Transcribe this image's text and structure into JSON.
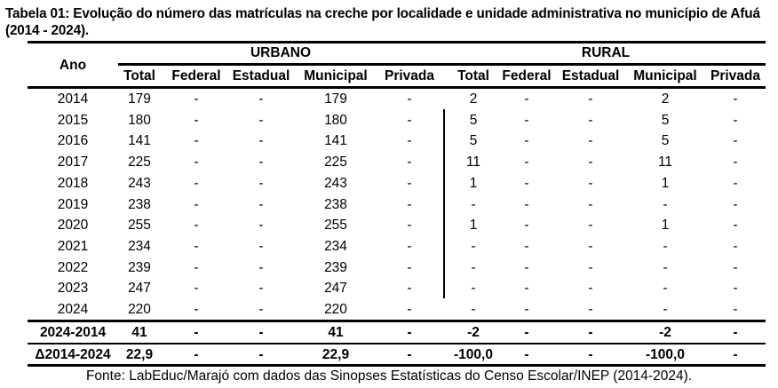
{
  "title": "Tabela 01: Evolução do número das matrículas na creche por localidade e unidade administrativa no município de Afuá (2014 - 2024).",
  "table": {
    "row_header": "Ano",
    "groups": [
      "URBANO",
      "RURAL"
    ],
    "columns": [
      "Total",
      "Federal",
      "Estadual",
      "Municipal",
      "Privada",
      "Total",
      "Federal",
      "Estadual",
      "Municipal",
      "Privada"
    ],
    "rows": [
      {
        "ano": "2014",
        "values": [
          "179",
          "-",
          "-",
          "179",
          "-",
          "2",
          "-",
          "-",
          "2",
          "-"
        ]
      },
      {
        "ano": "2015",
        "values": [
          "180",
          "-",
          "-",
          "180",
          "-",
          "5",
          "-",
          "-",
          "5",
          "-"
        ]
      },
      {
        "ano": "2016",
        "values": [
          "141",
          "-",
          "-",
          "141",
          "-",
          "5",
          "-",
          "-",
          "5",
          "-"
        ]
      },
      {
        "ano": "2017",
        "values": [
          "225",
          "-",
          "-",
          "225",
          "-",
          "11",
          "-",
          "-",
          "11",
          "-"
        ]
      },
      {
        "ano": "2018",
        "values": [
          "243",
          "-",
          "-",
          "243",
          "-",
          "1",
          "-",
          "-",
          "1",
          "-"
        ]
      },
      {
        "ano": "2019",
        "values": [
          "238",
          "-",
          "-",
          "238",
          "-",
          "-",
          "-",
          "-",
          "-",
          "-"
        ]
      },
      {
        "ano": "2020",
        "values": [
          "255",
          "-",
          "-",
          "255",
          "-",
          "1",
          "-",
          "-",
          "1",
          "-"
        ]
      },
      {
        "ano": "2021",
        "values": [
          "234",
          "-",
          "-",
          "234",
          "-",
          "-",
          "-",
          "-",
          "-",
          "-"
        ]
      },
      {
        "ano": "2022",
        "values": [
          "239",
          "-",
          "-",
          "239",
          "-",
          "-",
          "-",
          "-",
          "-",
          "-"
        ]
      },
      {
        "ano": "2023",
        "values": [
          "247",
          "-",
          "-",
          "247",
          "-",
          "-",
          "-",
          "-",
          "-",
          "-"
        ]
      },
      {
        "ano": "2024",
        "values": [
          "220",
          "-",
          "-",
          "220",
          "-",
          "-",
          "-",
          "-",
          "-",
          "-"
        ]
      }
    ],
    "summary": [
      {
        "label": "2024-2014",
        "values": [
          "41",
          "-",
          "-",
          "41",
          "-",
          "-2",
          "-",
          "-",
          "-2",
          "-"
        ]
      },
      {
        "label": "Δ2014-2024",
        "values": [
          "22,9",
          "-",
          "-",
          "22,9",
          "-",
          "-100,0",
          "-",
          "-",
          "-100,0",
          "-"
        ]
      }
    ]
  },
  "footer": "Fonte: LabEduc/Marajó com dados das Sinopses Estatísticas do Censo Escolar/INEP (2014-2024)."
}
